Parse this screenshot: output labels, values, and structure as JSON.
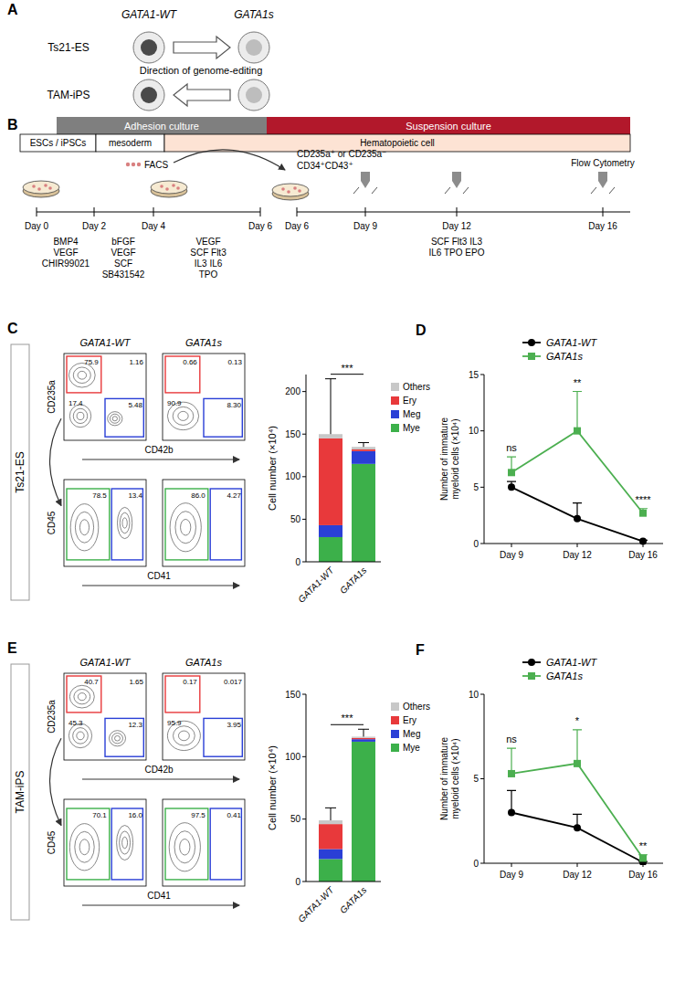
{
  "panel_labels": [
    "A",
    "B",
    "C",
    "D",
    "E",
    "F"
  ],
  "genome_editing": {
    "columns": [
      "GATA1-WT",
      "GATA1s"
    ],
    "rows": [
      {
        "label": "Ts21-ES",
        "direction": "right"
      },
      {
        "label": "TAM-iPS",
        "direction": "left"
      }
    ],
    "caption": "Direction of genome-editing"
  },
  "protocol": {
    "phases": [
      "Adhesion culture",
      "Suspension culture"
    ],
    "stages": [
      "ESCs / iPSCs",
      "mesoderm",
      "Hematopoietic cell"
    ],
    "sort_label": "FACS",
    "sorted_cells": [
      "CD235a⁺ or CD235a⁻",
      "CD34⁺CD43⁺"
    ],
    "readout": "Flow Cytometry",
    "days": [
      "Day 0",
      "Day 2",
      "Day 4",
      "Day 6",
      "Day 6",
      "Day 9",
      "Day 12",
      "Day 16"
    ],
    "factors": [
      [
        "BMP4",
        "VEGF",
        "CHIR99021"
      ],
      [
        "bFGF",
        "VEGF",
        "SCF",
        "SB431542"
      ],
      [
        "VEGF",
        "SCF Flt3",
        "IL3 IL6",
        "TPO"
      ],
      [
        "SCF Flt3 IL3",
        "IL6 TPO EPO"
      ]
    ]
  },
  "flow_cytometry": [
    {
      "row_label": "Ts21-ES",
      "columns": [
        "GATA1-WT",
        "GATA1s"
      ],
      "top_x": "CD42b",
      "top_y": "CD235a",
      "bottom_x": "CD41",
      "bottom_y": "CD45",
      "top_gates": [
        [
          "75.9",
          "1.16",
          "17.4",
          "5.48"
        ],
        [
          "0.66",
          "0.13",
          "90.9",
          "8.30"
        ]
      ],
      "bottom_gates": [
        [
          "78.5",
          "13.4"
        ],
        [
          "86.0",
          "4.27"
        ]
      ]
    },
    {
      "row_label": "TAM-iPS",
      "columns": [
        "GATA1-WT",
        "GATA1s"
      ],
      "top_x": "CD42b",
      "top_y": "CD235a",
      "bottom_x": "CD41",
      "bottom_y": "CD45",
      "top_gates": [
        [
          "40.7",
          "1.65",
          "45.3",
          "12.3"
        ],
        [
          "0.17",
          "0.017",
          "95.9",
          "3.95"
        ]
      ],
      "bottom_gates": [
        [
          "70.1",
          "16.0"
        ],
        [
          "97.5",
          "0.41"
        ]
      ]
    }
  ],
  "chart_data": [
    {
      "type": "bar",
      "stacked": true,
      "legend": "right",
      "y_label": "Cell number (×10⁴)",
      "categories": [
        "GATA1-WT",
        "GATA1s"
      ],
      "series": [
        {
          "name": "Mye",
          "color": "#3cb04a",
          "values": [
            29,
            115
          ]
        },
        {
          "name": "Meg",
          "color": "#2a3fd6",
          "values": [
            14,
            15
          ]
        },
        {
          "name": "Ery",
          "color": "#e8393b",
          "values": [
            102,
            2
          ]
        },
        {
          "name": "Others",
          "color": "#c8c8c8",
          "values": [
            5,
            3
          ],
          "errors": [
            65,
            5
          ]
        }
      ],
      "ylim": [
        0,
        220
      ],
      "yticks": [
        0,
        50,
        100,
        150,
        200
      ],
      "annotations": [
        "***"
      ]
    },
    {
      "type": "line",
      "legend": "top",
      "y_label": "Number of immature myeloid cells (×10⁴)",
      "categories": [
        "Day 9",
        "Day 12",
        "Day 16"
      ],
      "series": [
        {
          "name": "GATA1-WT",
          "color": "#000000",
          "marker": "circle",
          "values": [
            5.0,
            2.2,
            0.2
          ],
          "errors": [
            0.5,
            1.4,
            0.1
          ]
        },
        {
          "name": "GATA1s",
          "color": "#4caf50",
          "marker": "square",
          "values": [
            6.3,
            10.0,
            2.7
          ],
          "errors": [
            1.4,
            3.5,
            0.4
          ]
        }
      ],
      "ylim": [
        0,
        15
      ],
      "yticks": [
        0,
        5,
        10,
        15
      ],
      "annotations": [
        "ns",
        "**",
        "****"
      ]
    },
    {
      "type": "bar",
      "stacked": true,
      "legend": "right",
      "y_label": "Cell number (×10⁴)",
      "categories": [
        "GATA1-WT",
        "GATA1s"
      ],
      "series": [
        {
          "name": "Mye",
          "color": "#3cb04a",
          "values": [
            18,
            112
          ]
        },
        {
          "name": "Meg",
          "color": "#2a3fd6",
          "values": [
            8,
            2
          ]
        },
        {
          "name": "Ery",
          "color": "#e8393b",
          "values": [
            20,
            1
          ]
        },
        {
          "name": "Others",
          "color": "#c8c8c8",
          "values": [
            3,
            1
          ],
          "errors": [
            10,
            6
          ]
        }
      ],
      "ylim": [
        0,
        150
      ],
      "yticks": [
        0,
        50,
        100,
        150
      ],
      "annotations": [
        "***"
      ]
    },
    {
      "type": "line",
      "legend": "top",
      "y_label": "Number of immature myeloid cells (×10⁴)",
      "categories": [
        "Day 9",
        "Day 12",
        "Day 16"
      ],
      "series": [
        {
          "name": "GATA1-WT",
          "color": "#000000",
          "marker": "circle",
          "values": [
            3.0,
            2.1,
            0.05
          ],
          "errors": [
            1.3,
            0.8,
            0.05
          ]
        },
        {
          "name": "GATA1s",
          "color": "#4caf50",
          "marker": "square",
          "values": [
            5.3,
            5.9,
            0.3
          ],
          "errors": [
            1.5,
            2.0,
            0.2
          ]
        }
      ],
      "ylim": [
        0,
        10
      ],
      "yticks": [
        0,
        5,
        10
      ],
      "annotations": [
        "ns",
        "*",
        "**"
      ]
    }
  ]
}
